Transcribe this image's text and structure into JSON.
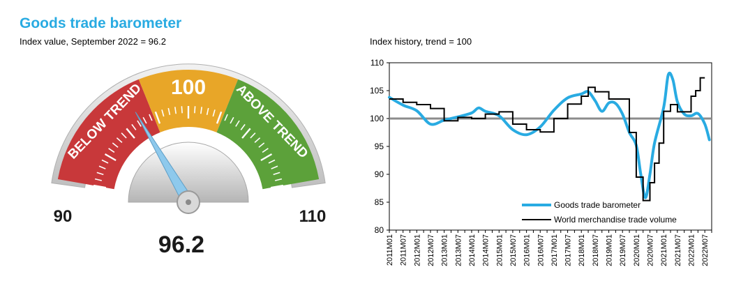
{
  "header": {
    "title": "Goods trade barometer",
    "subtitle": "Index value, September 2022 = 96.2"
  },
  "gauge": {
    "min_label": "90",
    "max_label": "110",
    "center_label": "100",
    "below_label": "BELOW TREND",
    "above_label": "ABOVE TREND",
    "value_label": "96.2",
    "value": 96.2,
    "min": 90,
    "max": 110,
    "colors": {
      "below": "#C8383A",
      "center": "#E8A628",
      "above": "#5CA13A",
      "needle": "#8EC9EC",
      "frame": "#CFCFCF"
    }
  },
  "chart_data": {
    "type": "line",
    "title": "Index history, trend = 100",
    "ylim": [
      80,
      110
    ],
    "yticks": [
      80,
      85,
      90,
      95,
      100,
      105,
      110
    ],
    "reference_line": 100,
    "x_labels": [
      "2011M01",
      "2011M07",
      "2012M01",
      "2012M07",
      "2013M01",
      "2013M07",
      "2014M01",
      "2014M07",
      "2015M01",
      "2015M07",
      "2016M01",
      "2016M07",
      "2017M01",
      "2017M07",
      "2018M01",
      "2018M07",
      "2019M01",
      "2019M07",
      "2020M01",
      "2020M07",
      "2021M01",
      "2021M07",
      "2022M01",
      "2022M07"
    ],
    "series": [
      {
        "name": "Goods trade barometer",
        "color": "#29ABE2",
        "points": [
          [
            "2011M01",
            103.8
          ],
          [
            "2011M07",
            102.4
          ],
          [
            "2012M01",
            101.4
          ],
          [
            "2012M07",
            99.0
          ],
          [
            "2013M01",
            99.7
          ],
          [
            "2013M07",
            100.3
          ],
          [
            "2014M01",
            101.0
          ],
          [
            "2014M04",
            101.9
          ],
          [
            "2014M07",
            101.3
          ],
          [
            "2015M01",
            100.5
          ],
          [
            "2015M07",
            98.0
          ],
          [
            "2016M01",
            97.1
          ],
          [
            "2016M07",
            98.5
          ],
          [
            "2017M01",
            101.5
          ],
          [
            "2017M07",
            103.7
          ],
          [
            "2018M01",
            104.4
          ],
          [
            "2018M04",
            104.8
          ],
          [
            "2018M07",
            103.2
          ],
          [
            "2018M10",
            101.3
          ],
          [
            "2019M01",
            102.8
          ],
          [
            "2019M04",
            102.7
          ],
          [
            "2019M07",
            100.8
          ],
          [
            "2019M10",
            97.5
          ],
          [
            "2020M01",
            95.2
          ],
          [
            "2020M03",
            90.0
          ],
          [
            "2020M05",
            85.8
          ],
          [
            "2020M07",
            90.0
          ],
          [
            "2020M09",
            95.6
          ],
          [
            "2021M01",
            102.0
          ],
          [
            "2021M03",
            107.8
          ],
          [
            "2021M05",
            107.0
          ],
          [
            "2021M07",
            103.0
          ],
          [
            "2021M10",
            100.8
          ],
          [
            "2022M01",
            100.5
          ],
          [
            "2022M04",
            100.9
          ],
          [
            "2022M07",
            99.0
          ],
          [
            "2022M09",
            96.2
          ]
        ]
      },
      {
        "name": "World merchandise trade volume",
        "color": "#000000",
        "points": [
          [
            "2011M01",
            103.5
          ],
          [
            "2011M07",
            102.9
          ],
          [
            "2012M01",
            102.5
          ],
          [
            "2012M07",
            101.8
          ],
          [
            "2013M01",
            99.6
          ],
          [
            "2013M07",
            100.2
          ],
          [
            "2014M01",
            100.0
          ],
          [
            "2014M07",
            100.8
          ],
          [
            "2015M01",
            101.2
          ],
          [
            "2015M07",
            99.0
          ],
          [
            "2016M01",
            98.0
          ],
          [
            "2016M07",
            97.6
          ],
          [
            "2017M01",
            100.0
          ],
          [
            "2017M07",
            102.6
          ],
          [
            "2018M01",
            104.0
          ],
          [
            "2018M04",
            105.6
          ],
          [
            "2018M07",
            104.8
          ],
          [
            "2019M01",
            103.5
          ],
          [
            "2019M07",
            103.5
          ],
          [
            "2019M10",
            97.5
          ],
          [
            "2020M01",
            89.5
          ],
          [
            "2020M04",
            85.3
          ],
          [
            "2020M07",
            88.5
          ],
          [
            "2020M09",
            92.0
          ],
          [
            "2020M11",
            95.6
          ],
          [
            "2021M01",
            101.3
          ],
          [
            "2021M04",
            102.5
          ],
          [
            "2021M07",
            101.2
          ],
          [
            "2021M11",
            101.2
          ],
          [
            "2022M01",
            104.0
          ],
          [
            "2022M03",
            105.0
          ],
          [
            "2022M05",
            107.3
          ],
          [
            "2022M07",
            107.3
          ]
        ]
      }
    ]
  }
}
